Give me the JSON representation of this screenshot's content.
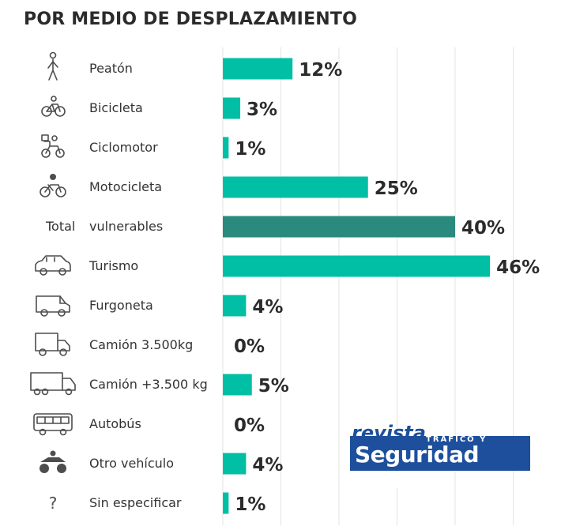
{
  "title": "POR MEDIO DE DESPLAZAMIENTO",
  "colors": {
    "bar": "#00bfa5",
    "highlight": "#2a8a7e",
    "grid": "#e3e3e3",
    "logo": "#1d4f9c"
  },
  "logo": {
    "line1": "revista",
    "line2": "TRÁFICO Y",
    "line3": "Seguridad Vial"
  },
  "chart_data": {
    "type": "bar",
    "orientation": "horizontal",
    "title": "POR MEDIO DE DESPLAZAMIENTO",
    "grid": true,
    "xlim": [
      0,
      50
    ],
    "categories": [
      "Peatón",
      "Bicicleta",
      "Ciclomotor",
      "Motocicleta",
      "Total vulnerables",
      "Turismo",
      "Furgoneta",
      "Camión 3.500kg",
      "Camión +3.500 kg",
      "Autobús",
      "Otro vehículo",
      "Sin especificar"
    ],
    "values": [
      12,
      3,
      1,
      25,
      40,
      46,
      4,
      0,
      5,
      0,
      4,
      1
    ],
    "labels": [
      "12%",
      "3%",
      "1%",
      "25%",
      "40%",
      "46%",
      "4%",
      "0%",
      "5%",
      "0%",
      "4%",
      "1%"
    ],
    "icons": [
      "pedestrian-icon",
      "bicycle-icon",
      "moped-icon",
      "motorcycle-icon",
      "",
      "car-icon",
      "van-icon",
      "small-truck-icon",
      "large-truck-icon",
      "bus-icon",
      "quad-icon",
      "question-icon"
    ],
    "highlight_index": 4
  }
}
